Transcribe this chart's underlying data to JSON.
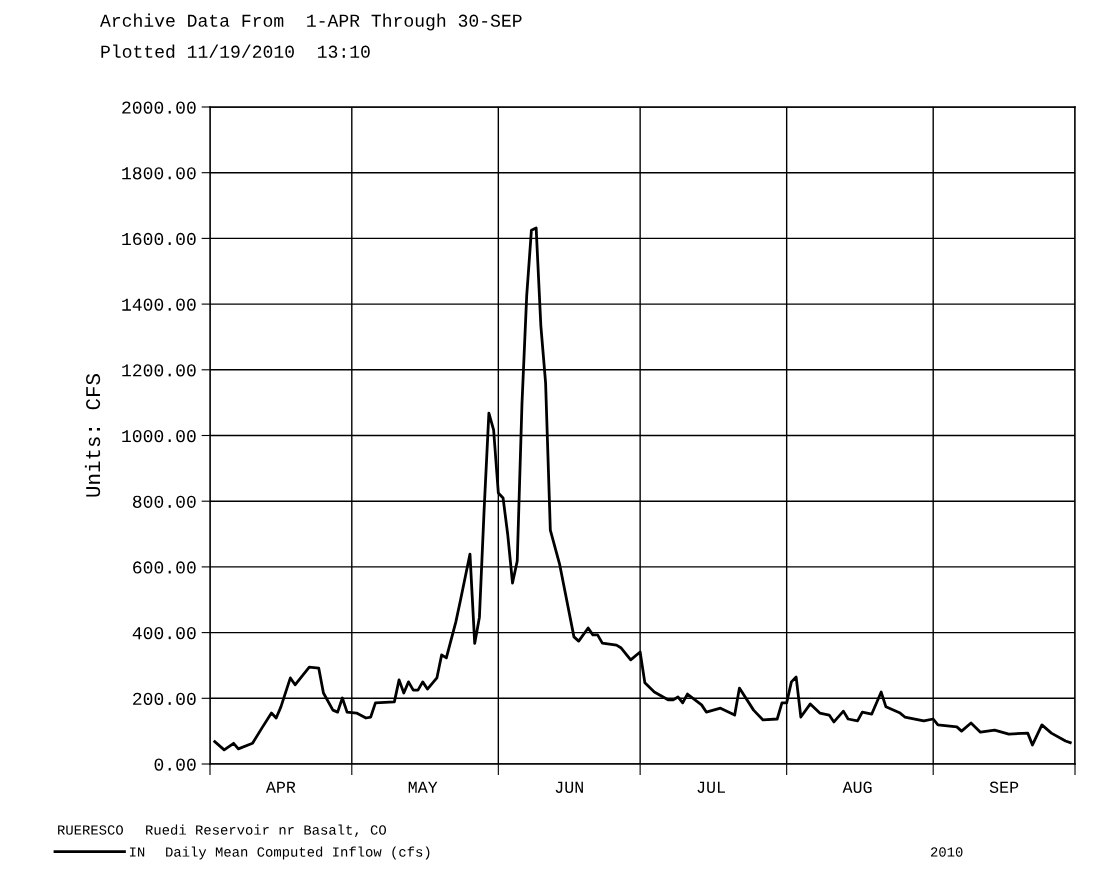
{
  "chart_data": {
    "type": "line",
    "title": "Archive Data From  1-APR Through 30-SEP",
    "subtitle": "Plotted 11/19/2010  13:10",
    "ylabel": "Units: CFS",
    "annotations": [
      "RUERESCO",
      "Ruedi Reservoir nr Basalt, CO",
      "Daily Mean Computed Inflow (cfs)",
      "2010"
    ],
    "x": [
      "2010-04-02",
      "2010-04-04",
      "2010-04-06",
      "2010-04-07",
      "2010-04-10",
      "2010-04-12",
      "2010-04-14",
      "2010-04-15",
      "2010-04-16",
      "2010-04-18",
      "2010-04-19",
      "2010-04-22",
      "2010-04-24",
      "2010-04-25",
      "2010-04-27",
      "2010-04-28",
      "2010-04-29",
      "2010-04-30",
      "2010-05-02",
      "2010-05-04",
      "2010-05-05",
      "2010-05-06",
      "2010-05-10",
      "2010-05-11",
      "2010-05-12",
      "2010-05-13",
      "2010-05-14",
      "2010-05-15",
      "2010-05-16",
      "2010-05-17",
      "2010-05-19",
      "2010-05-20",
      "2010-05-21",
      "2010-05-23",
      "2010-05-24",
      "2010-05-25",
      "2010-05-26",
      "2010-05-27",
      "2010-05-28",
      "2010-05-29",
      "2010-05-30",
      "2010-05-31",
      "2010-06-01",
      "2010-06-02",
      "2010-06-03",
      "2010-06-04",
      "2010-06-05",
      "2010-06-06",
      "2010-06-07",
      "2010-06-08",
      "2010-06-09",
      "2010-06-10",
      "2010-06-11",
      "2010-06-12",
      "2010-06-14",
      "2010-06-17",
      "2010-06-18",
      "2010-06-20",
      "2010-06-21",
      "2010-06-22",
      "2010-06-23",
      "2010-06-26",
      "2010-06-27",
      "2010-06-29",
      "2010-07-01",
      "2010-07-02",
      "2010-07-04",
      "2010-07-07",
      "2010-07-08",
      "2010-07-09",
      "2010-07-10",
      "2010-07-11",
      "2010-07-14",
      "2010-07-15",
      "2010-07-18",
      "2010-07-21",
      "2010-07-22",
      "2010-07-25",
      "2010-07-27",
      "2010-07-30",
      "2010-07-31",
      "2010-08-01",
      "2010-08-02",
      "2010-08-03",
      "2010-08-04",
      "2010-08-06",
      "2010-08-08",
      "2010-08-10",
      "2010-08-11",
      "2010-08-13",
      "2010-08-14",
      "2010-08-16",
      "2010-08-17",
      "2010-08-19",
      "2010-08-21",
      "2010-08-22",
      "2010-08-25",
      "2010-08-26",
      "2010-08-30",
      "2010-09-01",
      "2010-09-02",
      "2010-09-06",
      "2010-09-07",
      "2010-09-09",
      "2010-09-11",
      "2010-09-14",
      "2010-09-17",
      "2010-09-21",
      "2010-09-22",
      "2010-09-24",
      "2010-09-26",
      "2010-09-29",
      "2010-09-30"
    ],
    "series": [
      {
        "name": "IN",
        "color": "#000000",
        "values": [
          68,
          43,
          63,
          46,
          63,
          110,
          155,
          140,
          174,
          262,
          241,
          295,
          292,
          216,
          164,
          158,
          201,
          158,
          155,
          140,
          143,
          186,
          189,
          256,
          216,
          250,
          225,
          225,
          250,
          228,
          262,
          332,
          323,
          432,
          499,
          569,
          639,
          367,
          447,
          776,
          1068,
          1017,
          825,
          810,
          697,
          551,
          618,
          1096,
          1425,
          1625,
          1632,
          1333,
          1160,
          712,
          606,
          387,
          374,
          414,
          393,
          393,
          368,
          362,
          353,
          317,
          341,
          247,
          219,
          195,
          195,
          204,
          186,
          213,
          180,
          158,
          170,
          149,
          231,
          164,
          134,
          137,
          186,
          186,
          250,
          265,
          143,
          183,
          155,
          149,
          128,
          161,
          137,
          131,
          158,
          152,
          219,
          174,
          155,
          143,
          131,
          137,
          119,
          113,
          100,
          125,
          97,
          103,
          91,
          94,
          58,
          119,
          94,
          70,
          65
        ]
      }
    ],
    "xlim": [
      "2010-04-01",
      "2010-10-01"
    ],
    "xticks": [
      {
        "value": "2010-04-01",
        "label": null
      },
      {
        "value": "2010-04-16",
        "label": "APR"
      },
      {
        "value": "2010-05-01",
        "label": null
      },
      {
        "value": "2010-05-16",
        "label": "MAY"
      },
      {
        "value": "2010-06-01",
        "label": null
      },
      {
        "value": "2010-06-16",
        "label": "JUN"
      },
      {
        "value": "2010-07-01",
        "label": null
      },
      {
        "value": "2010-07-16",
        "label": "JUL"
      },
      {
        "value": "2010-08-01",
        "label": null
      },
      {
        "value": "2010-08-16",
        "label": "AUG"
      },
      {
        "value": "2010-09-01",
        "label": null
      },
      {
        "value": "2010-09-16",
        "label": "SEP"
      },
      {
        "value": "2010-10-01",
        "label": null
      }
    ],
    "ylim": [
      0,
      2000
    ],
    "yticks": [
      {
        "value": 0,
        "label": "0.00"
      },
      {
        "value": 200,
        "label": "200.00"
      },
      {
        "value": 400,
        "label": "400.00"
      },
      {
        "value": 600,
        "label": "600.00"
      },
      {
        "value": 800,
        "label": "800.00"
      },
      {
        "value": 1000,
        "label": "1000.00"
      },
      {
        "value": 1200,
        "label": "1200.00"
      },
      {
        "value": 1400,
        "label": "1400.00"
      },
      {
        "value": 1600,
        "label": "1600.00"
      },
      {
        "value": 1800,
        "label": "1800.00"
      },
      {
        "value": 2000,
        "label": "2000.00"
      }
    ],
    "grid": true,
    "legend": "bottom left",
    "line_style": "solid",
    "marker": "none"
  }
}
